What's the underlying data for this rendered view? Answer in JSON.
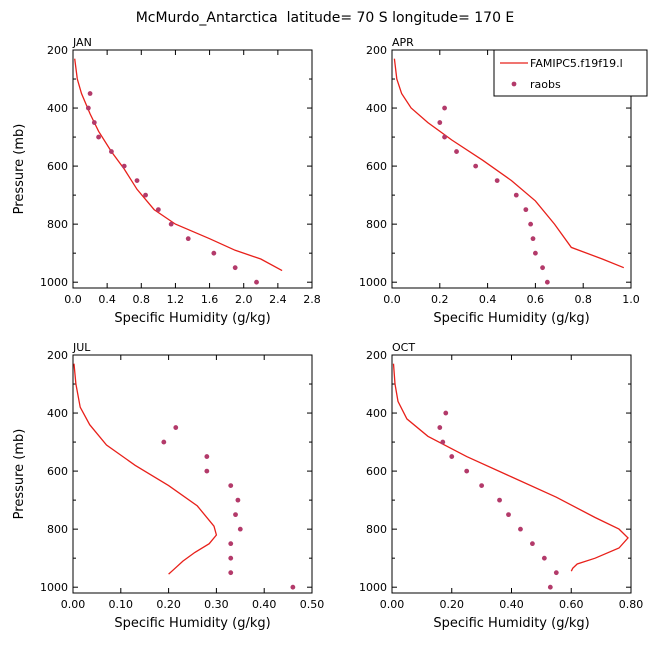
{
  "title": "McMurdo_Antarctica  latitude= 70 S longitude= 170 E",
  "legend": {
    "model_label": "FAMIPC5.f19f19.l",
    "obs_label": "raobs"
  },
  "colors": {
    "model": "#e8201a",
    "obs": "#b33a6a"
  },
  "chart_data": [
    {
      "type": "line",
      "panel": "JAN",
      "xlabel": "Specific Humidity (g/kg)",
      "ylabel": "Pressure (mb)",
      "xlim": [
        0,
        2.8
      ],
      "ylim": [
        1020,
        200
      ],
      "xticks": [
        "0.0",
        "0.4",
        "0.8",
        "1.2",
        "1.6",
        "2.0",
        "2.4",
        "2.8"
      ],
      "yticks": [
        "200",
        "400",
        "600",
        "800",
        "1000"
      ],
      "series": [
        {
          "name": "FAMIPC5.f19f19.l",
          "kind": "line",
          "x": [
            0.02,
            0.05,
            0.1,
            0.2,
            0.3,
            0.45,
            0.6,
            0.75,
            0.95,
            1.2,
            1.6,
            1.9,
            2.2,
            2.45
          ],
          "y": [
            230,
            300,
            350,
            420,
            480,
            550,
            610,
            680,
            750,
            800,
            850,
            890,
            920,
            960
          ]
        },
        {
          "name": "raobs",
          "kind": "scatter",
          "x": [
            0.2,
            0.18,
            0.25,
            0.3,
            0.45,
            0.6,
            0.75,
            0.85,
            1.0,
            1.15,
            1.35,
            1.65,
            1.9,
            2.15
          ],
          "y": [
            350,
            400,
            450,
            500,
            550,
            600,
            650,
            700,
            750,
            800,
            850,
            900,
            950,
            1000
          ]
        }
      ]
    },
    {
      "type": "line",
      "panel": "APR",
      "xlabel": "Specific Humidity (g/kg)",
      "ylabel": "",
      "xlim": [
        0,
        1.0
      ],
      "ylim": [
        1020,
        200
      ],
      "xticks": [
        "0.0",
        "0.2",
        "0.4",
        "0.6",
        "0.8",
        "1.0"
      ],
      "yticks": [
        "200",
        "400",
        "600",
        "800",
        "1000"
      ],
      "series": [
        {
          "name": "FAMIPC5.f19f19.l",
          "kind": "line",
          "x": [
            0.01,
            0.02,
            0.04,
            0.08,
            0.15,
            0.25,
            0.38,
            0.5,
            0.6,
            0.68,
            0.75,
            0.88,
            0.97
          ],
          "y": [
            230,
            300,
            350,
            400,
            450,
            510,
            580,
            650,
            720,
            800,
            880,
            920,
            950
          ]
        },
        {
          "name": "raobs",
          "kind": "scatter",
          "x": [
            0.22,
            0.2,
            0.22,
            0.27,
            0.35,
            0.44,
            0.52,
            0.56,
            0.58,
            0.59,
            0.6,
            0.63,
            0.65
          ],
          "y": [
            400,
            450,
            500,
            550,
            600,
            650,
            700,
            750,
            800,
            850,
            900,
            950,
            1000
          ]
        }
      ]
    },
    {
      "type": "line",
      "panel": "JUL",
      "xlabel": "Specific Humidity (g/kg)",
      "ylabel": "Pressure (mb)",
      "xlim": [
        0,
        0.5
      ],
      "ylim": [
        1020,
        200
      ],
      "xticks": [
        "0.00",
        "0.10",
        "0.20",
        "0.30",
        "0.40",
        "0.50"
      ],
      "yticks": [
        "200",
        "400",
        "600",
        "800",
        "1000"
      ],
      "series": [
        {
          "name": "FAMIPC5.f19f19.l",
          "kind": "line",
          "x": [
            0.002,
            0.006,
            0.015,
            0.035,
            0.07,
            0.13,
            0.2,
            0.26,
            0.295,
            0.3,
            0.285,
            0.255,
            0.23,
            0.21,
            0.2
          ],
          "y": [
            230,
            300,
            380,
            440,
            510,
            580,
            650,
            720,
            790,
            820,
            850,
            880,
            910,
            940,
            955
          ]
        },
        {
          "name": "raobs",
          "kind": "scatter",
          "x": [
            0.215,
            0.19,
            0.28,
            0.28,
            0.33,
            0.345,
            0.34,
            0.35,
            0.33,
            0.33,
            0.33,
            0.46
          ],
          "y": [
            450,
            500,
            550,
            600,
            650,
            700,
            750,
            800,
            850,
            900,
            950,
            1000
          ]
        }
      ]
    },
    {
      "type": "line",
      "panel": "OCT",
      "xlabel": "Specific Humidity (g/kg)",
      "ylabel": "",
      "xlim": [
        0,
        0.8
      ],
      "ylim": [
        1020,
        200
      ],
      "xticks": [
        "0.00",
        "0.20",
        "0.40",
        "0.60",
        "0.80"
      ],
      "yticks": [
        "200",
        "400",
        "600",
        "800",
        "1000"
      ],
      "series": [
        {
          "name": "FAMIPC5.f19f19.l",
          "kind": "line",
          "x": [
            0.005,
            0.01,
            0.02,
            0.05,
            0.12,
            0.25,
            0.4,
            0.55,
            0.68,
            0.76,
            0.79,
            0.76,
            0.68,
            0.62,
            0.605,
            0.6
          ],
          "y": [
            230,
            300,
            360,
            420,
            480,
            550,
            620,
            690,
            760,
            800,
            830,
            865,
            900,
            920,
            935,
            945
          ]
        },
        {
          "name": "raobs",
          "kind": "scatter",
          "x": [
            0.18,
            0.16,
            0.17,
            0.2,
            0.25,
            0.3,
            0.36,
            0.39,
            0.43,
            0.47,
            0.51,
            0.55,
            0.53
          ],
          "y": [
            400,
            450,
            500,
            550,
            600,
            650,
            700,
            750,
            800,
            850,
            900,
            950,
            1000
          ]
        }
      ]
    }
  ]
}
